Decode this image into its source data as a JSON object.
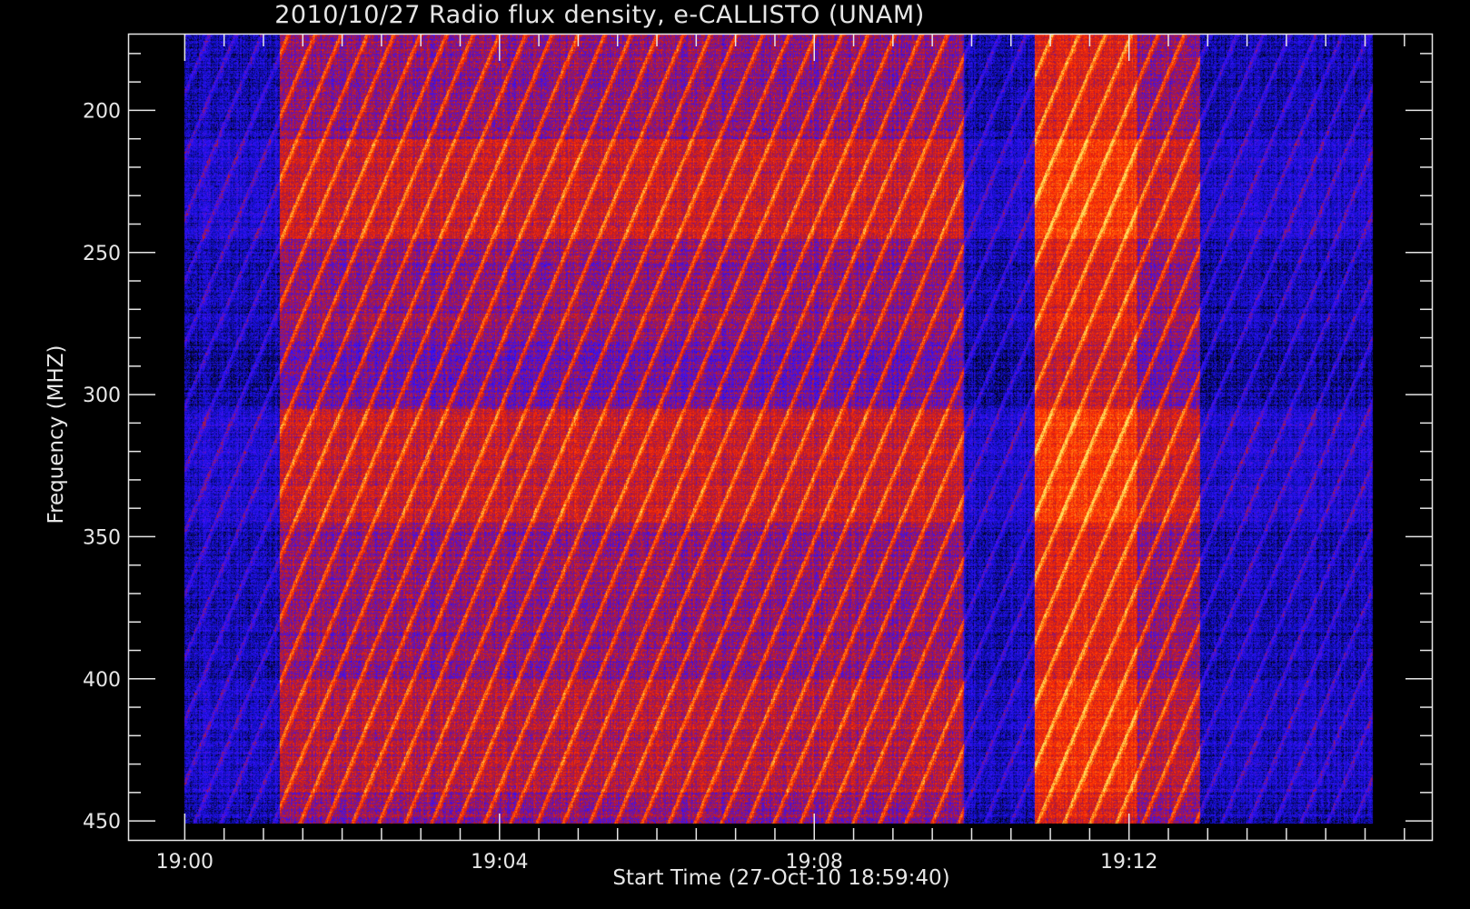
{
  "title": "2010/10/27  Radio flux density, e-CALLISTO (UNAM)",
  "chart_data": {
    "type": "heatmap",
    "title": "2010/10/27  Radio flux density, e-CALLISTO (UNAM)",
    "xlabel": "Start Time (27-Oct-10 18:59:40)",
    "ylabel": "Frequency (MHZ)",
    "x_ticks": [
      "19:00",
      "19:04",
      "19:08",
      "19:12"
    ],
    "x_tick_minutes": [
      0,
      4,
      8,
      12
    ],
    "x_range_minutes": [
      -0.72,
      15.86
    ],
    "data_x_range_minutes": [
      0,
      15.1
    ],
    "y_ticks": [
      200,
      250,
      300,
      350,
      400,
      450
    ],
    "y_range": [
      173,
      457
    ],
    "y_inverted": true,
    "data_y_range": [
      170,
      451
    ],
    "colormap": [
      "#000000",
      "#1010c8",
      "#3a10ff",
      "#b01a30",
      "#ff2a00",
      "#ff7a10",
      "#ffe060"
    ],
    "segments": [
      {
        "from_min": 0.0,
        "to_min": 1.2,
        "activity": "low"
      },
      {
        "from_min": 1.2,
        "to_min": 9.9,
        "activity": "high"
      },
      {
        "from_min": 9.9,
        "to_min": 10.8,
        "activity": "low"
      },
      {
        "from_min": 10.8,
        "to_min": 12.1,
        "activity": "very high"
      },
      {
        "from_min": 12.1,
        "to_min": 12.9,
        "activity": "high"
      },
      {
        "from_min": 12.9,
        "to_min": 15.1,
        "activity": "low"
      }
    ],
    "features": "Repetitive drifting interference stripes across 170-451 MHz, higher intensity near 220-240 and 310-340 MHz"
  }
}
